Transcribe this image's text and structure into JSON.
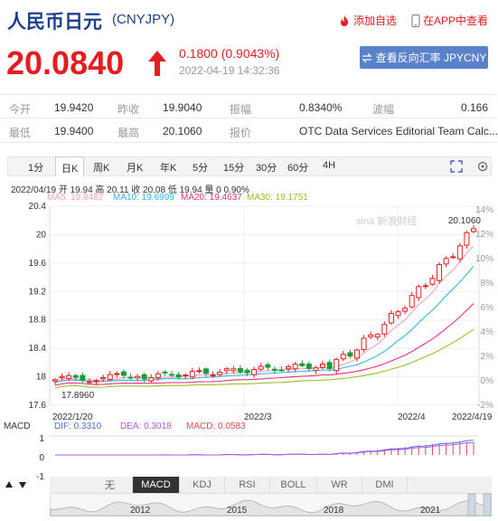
{
  "header": {
    "title": "人民币日元",
    "code": "(CNYJPY)",
    "add_fav": "添加自选",
    "app_view": "在APP中查看",
    "price": "20.0840",
    "change": "0.1800 (0.9043%)",
    "timestamp": "2022-04-19 14:32:36",
    "reverse_button": "查看反向汇率 JPYCNY"
  },
  "stats": {
    "open_label": "今开",
    "open": "19.9420",
    "prev_label": "昨收",
    "prev": "19.9040",
    "amp_label": "振幅",
    "amp": "0.8340%",
    "wave_label": "波幅",
    "wave": "0.166",
    "low_label": "最低",
    "low": "19.9400",
    "high_label": "最高",
    "high": "20.1060",
    "quote_label": "报价",
    "quote": "OTC Data Services Editorial Team Calc..."
  },
  "tabs": [
    "1分",
    "日K",
    "周K",
    "月K",
    "年K",
    "5分",
    "15分",
    "30分",
    "60分",
    "4H"
  ],
  "active_tab": "日K",
  "info": {
    "line": "2022/04/19 开 19.94 高 20.11 收 20.08 低 19.94 量 0 0.90%",
    "ma5": "MA5: 19.8482",
    "ma10": "MA10: 19.6999",
    "ma20": "MA20: 19.4637",
    "ma30": "MA30: 19.1751"
  },
  "colors": {
    "up": "#e41e1e",
    "down": "#1a9b3b",
    "ma5": "#f7a2b5",
    "ma10": "#36b4e8",
    "ma20": "#e8317b",
    "ma30": "#99be2a",
    "dif": "#4a6fe0",
    "dea": "#b856e6",
    "macd": "#e04a4a"
  },
  "chart_data": {
    "type": "candlestick",
    "yticks": [
      "20.4",
      "20",
      "19.6",
      "19.2",
      "18.8",
      "18.4",
      "18",
      "17.6"
    ],
    "pct_ticks": [
      "14%",
      "12%",
      "10%",
      "8%",
      "6%",
      "4%",
      "2%",
      "0%",
      "-2%"
    ],
    "xlabels": [
      "2022/1/20",
      "2022/3",
      "2022/4",
      "2022/4/19"
    ],
    "max_label": "20.1060",
    "min_label": "17.8960",
    "ylim": [
      17.6,
      20.4
    ],
    "macd": {
      "dif_label": "DIF: 0.3310",
      "dea_label": "DEA: 0.3018",
      "macd_label": "MACD: 0.0583",
      "title": "MACD",
      "yticks": [
        "1",
        "0",
        "-1"
      ]
    }
  },
  "indicator_tabs": [
    "无",
    "MACD",
    "KDJ",
    "RSI",
    "BOLL",
    "WR",
    "DMI"
  ],
  "active_indicator": "MACD",
  "nav_years": [
    "2012",
    "2015",
    "2018",
    "2021"
  ],
  "watermark": "sina 新浪财经"
}
